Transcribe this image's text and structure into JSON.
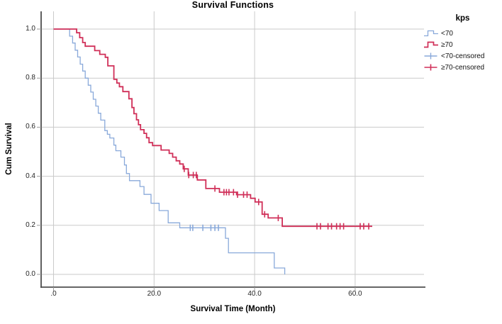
{
  "chart_data": {
    "type": "line",
    "subtype": "kaplan-meier-step-survival",
    "title": "Survival Functions",
    "grid": true,
    "background": "#ffffff",
    "gridline_color": "#cacaca",
    "axis_color": "#4f4f4f",
    "x_axis": {
      "title": "Survival Time (Month)",
      "range": [
        0,
        74
      ],
      "ticks": [
        {
          "label": ".0",
          "value": 0
        },
        {
          "label": "20.0",
          "value": 20
        },
        {
          "label": "40.0",
          "value": 40
        },
        {
          "label": "60.0",
          "value": 60
        }
      ]
    },
    "y_axis": {
      "title": "Cum Survival",
      "range": [
        0,
        1
      ],
      "ticks": [
        {
          "label": "1.0",
          "value": 1.0
        },
        {
          "label": "0.8",
          "value": 0.8
        },
        {
          "label": "0.6",
          "value": 0.6
        },
        {
          "label": "0.4",
          "value": 0.4
        },
        {
          "label": "0.2",
          "value": 0.2
        },
        {
          "label": "0.0",
          "value": 0.0
        }
      ]
    },
    "legend": {
      "title": "kps",
      "position": "top-right",
      "items": [
        {
          "label": "<70",
          "swatch": "step-line",
          "series": 0
        },
        {
          "label": "≥70",
          "swatch": "step-line",
          "series": 1
        },
        {
          "label": "<70-censored",
          "swatch": "plus",
          "series": 0
        },
        {
          "label": "≥70-censored",
          "swatch": "plus",
          "series": 1
        }
      ]
    },
    "series": [
      {
        "name": "<70",
        "color": "#89a9da",
        "line_width": 1.3,
        "start": [
          0,
          1.0
        ],
        "steps": [
          [
            3.2,
            0.971
          ],
          [
            3.8,
            0.943
          ],
          [
            4.3,
            0.914
          ],
          [
            4.8,
            0.886
          ],
          [
            5.3,
            0.857
          ],
          [
            5.8,
            0.829
          ],
          [
            6.3,
            0.8
          ],
          [
            6.9,
            0.771
          ],
          [
            7.4,
            0.743
          ],
          [
            7.9,
            0.714
          ],
          [
            8.4,
            0.686
          ],
          [
            8.9,
            0.657
          ],
          [
            9.4,
            0.629
          ],
          [
            10.2,
            0.586
          ],
          [
            10.7,
            0.571
          ],
          [
            11.2,
            0.556
          ],
          [
            12.0,
            0.527
          ],
          [
            12.4,
            0.504
          ],
          [
            13.4,
            0.478
          ],
          [
            14.1,
            0.446
          ],
          [
            14.5,
            0.411
          ],
          [
            15.1,
            0.382
          ],
          [
            17.2,
            0.358
          ],
          [
            18.0,
            0.326
          ],
          [
            19.4,
            0.29
          ],
          [
            21.0,
            0.26
          ],
          [
            22.8,
            0.21
          ],
          [
            25.1,
            0.19
          ],
          [
            34.2,
            0.147
          ],
          [
            34.8,
            0.088
          ],
          [
            43.9,
            0.026
          ],
          [
            46.0,
            0.0
          ]
        ],
        "end_month": 46.0,
        "censored": [
          [
            27.2,
            0.19
          ],
          [
            27.7,
            0.19
          ],
          [
            29.7,
            0.19
          ],
          [
            31.3,
            0.19
          ],
          [
            32.1,
            0.19
          ],
          [
            32.8,
            0.19
          ]
        ]
      },
      {
        "name": "≥70",
        "color": "#d02f58",
        "line_width": 1.8,
        "start": [
          0,
          1.0
        ],
        "steps": [
          [
            4.6,
            0.985
          ],
          [
            5.2,
            0.965
          ],
          [
            5.8,
            0.945
          ],
          [
            6.3,
            0.93
          ],
          [
            8.2,
            0.912
          ],
          [
            9.2,
            0.897
          ],
          [
            10.3,
            0.885
          ],
          [
            10.8,
            0.85
          ],
          [
            12.0,
            0.795
          ],
          [
            12.6,
            0.78
          ],
          [
            13.1,
            0.765
          ],
          [
            13.8,
            0.745
          ],
          [
            15.0,
            0.716
          ],
          [
            15.6,
            0.68
          ],
          [
            16.0,
            0.655
          ],
          [
            16.5,
            0.63
          ],
          [
            16.9,
            0.61
          ],
          [
            17.3,
            0.59
          ],
          [
            18.0,
            0.575
          ],
          [
            18.5,
            0.557
          ],
          [
            19.0,
            0.537
          ],
          [
            19.7,
            0.525
          ],
          [
            21.4,
            0.507
          ],
          [
            23.0,
            0.493
          ],
          [
            23.7,
            0.478
          ],
          [
            24.4,
            0.463
          ],
          [
            25.1,
            0.45
          ],
          [
            25.8,
            0.43
          ],
          [
            26.8,
            0.405
          ],
          [
            28.6,
            0.385
          ],
          [
            30.3,
            0.35
          ],
          [
            33.0,
            0.335
          ],
          [
            36.4,
            0.325
          ],
          [
            39.2,
            0.31
          ],
          [
            40.1,
            0.295
          ],
          [
            41.5,
            0.245
          ],
          [
            42.7,
            0.23
          ],
          [
            45.5,
            0.196
          ]
        ],
        "end_month": 63.4,
        "censored": [
          [
            26.0,
            0.43
          ],
          [
            26.9,
            0.405
          ],
          [
            27.8,
            0.405
          ],
          [
            28.4,
            0.405
          ],
          [
            32.1,
            0.35
          ],
          [
            33.9,
            0.335
          ],
          [
            34.4,
            0.335
          ],
          [
            34.9,
            0.335
          ],
          [
            35.8,
            0.335
          ],
          [
            36.6,
            0.325
          ],
          [
            37.8,
            0.325
          ],
          [
            38.5,
            0.325
          ],
          [
            40.8,
            0.295
          ],
          [
            42.0,
            0.245
          ],
          [
            44.7,
            0.23
          ],
          [
            52.4,
            0.196
          ],
          [
            53.1,
            0.196
          ],
          [
            54.6,
            0.196
          ],
          [
            55.3,
            0.196
          ],
          [
            56.3,
            0.196
          ],
          [
            57.0,
            0.196
          ],
          [
            57.7,
            0.196
          ],
          [
            61.0,
            0.196
          ],
          [
            61.7,
            0.196
          ],
          [
            62.7,
            0.196
          ]
        ]
      }
    ]
  }
}
